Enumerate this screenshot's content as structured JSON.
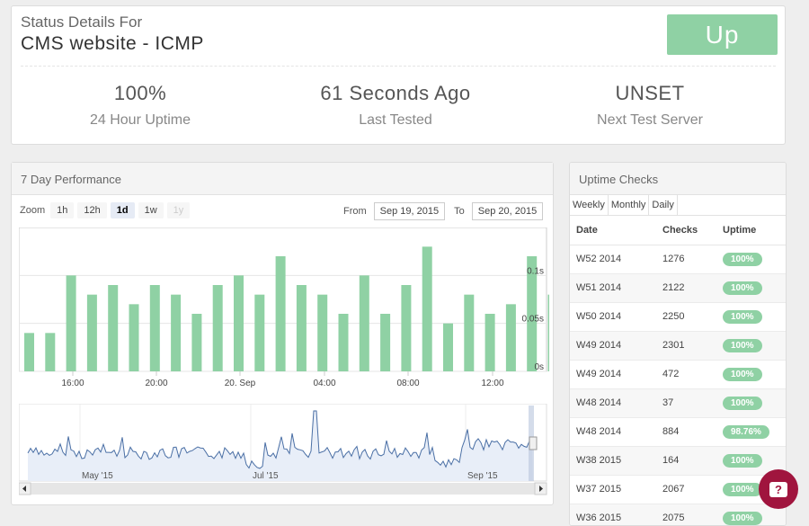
{
  "header": {
    "pretitle": "Status Details For",
    "title": "CMS website - ICMP",
    "status": "Up",
    "stats": [
      {
        "value": "100%",
        "label": "24 Hour Uptime"
      },
      {
        "value": "61 Seconds Ago",
        "label": "Last Tested"
      },
      {
        "value": "UNSET",
        "label": "Next Test Server"
      }
    ]
  },
  "performance": {
    "title": "7 Day Performance",
    "zoom_label": "Zoom",
    "zoom_buttons": [
      "1h",
      "12h",
      "1d",
      "1w",
      "1y"
    ],
    "zoom_active": "1d",
    "from_label": "From",
    "from_value": "Sep 19, 2015",
    "to_label": "To",
    "to_value": "Sep 20, 2015",
    "nav_labels": [
      "May '15",
      "Jul '15",
      "Sep '15"
    ]
  },
  "chart_data": {
    "type": "bar",
    "title": "",
    "xlabel": "",
    "ylabel": "",
    "y_tick_labels": [
      "0s",
      "0.05s",
      "0.1s"
    ],
    "ylim": [
      0,
      0.15
    ],
    "x_tick_labels": [
      "16:00",
      "20:00",
      "20. Sep",
      "04:00",
      "08:00",
      "12:00"
    ],
    "values": [
      0.04,
      0.04,
      0.1,
      0.08,
      0.09,
      0.07,
      0.09,
      0.08,
      0.06,
      0.09,
      0.1,
      0.08,
      0.12,
      0.09,
      0.08,
      0.06,
      0.1,
      0.06,
      0.09,
      0.13,
      0.05,
      0.08,
      0.06,
      0.07,
      0.12,
      0.08
    ],
    "color": "#8fd1a4",
    "grid": true
  },
  "uptime": {
    "title": "Uptime Checks",
    "tabs": [
      "Weekly",
      "Monthly",
      "Daily"
    ],
    "columns": [
      "Date",
      "Checks",
      "Uptime"
    ],
    "rows": [
      {
        "date": "W52 2014",
        "checks": "1276",
        "uptime": "100%"
      },
      {
        "date": "W51 2014",
        "checks": "2122",
        "uptime": "100%"
      },
      {
        "date": "W50 2014",
        "checks": "2250",
        "uptime": "100%"
      },
      {
        "date": "W49 2014",
        "checks": "2301",
        "uptime": "100%"
      },
      {
        "date": "W49 2014",
        "checks": "472",
        "uptime": "100%"
      },
      {
        "date": "W48 2014",
        "checks": "37",
        "uptime": "100%"
      },
      {
        "date": "W48 2014",
        "checks": "884",
        "uptime": "98.76%"
      },
      {
        "date": "W38 2015",
        "checks": "164",
        "uptime": "100%"
      },
      {
        "date": "W37 2015",
        "checks": "2067",
        "uptime": "100%"
      },
      {
        "date": "W36 2015",
        "checks": "2075",
        "uptime": "100%"
      }
    ]
  },
  "colors": {
    "accent": "#8fd1a4",
    "help": "#a0153e",
    "line": "#4a6fa5"
  },
  "help_icon": "help-bubble-icon"
}
